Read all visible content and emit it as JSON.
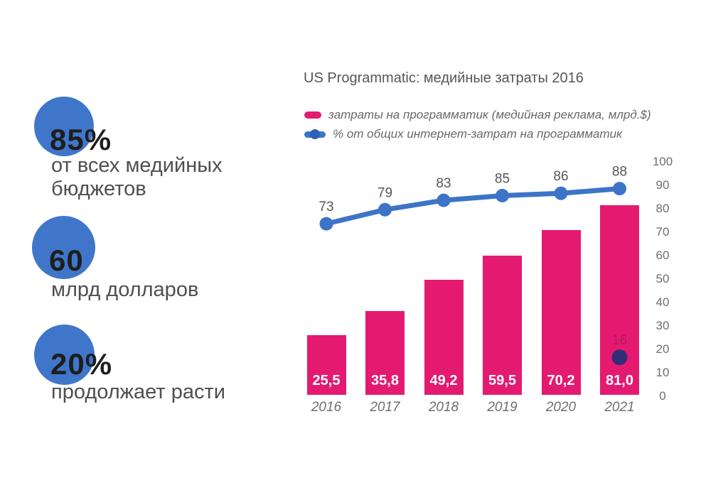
{
  "stats": [
    {
      "value": "85%",
      "label": "от всех медийных бюджетов"
    },
    {
      "value": "60",
      "label": "млрд долларов"
    },
    {
      "value": "20%",
      "label": "продолжает расти"
    }
  ],
  "chart_data": {
    "type": "bar",
    "title": "US Programmatic: медийные затраты 2016",
    "categories": [
      "2016",
      "2017",
      "2018",
      "2019",
      "2020",
      "2021"
    ],
    "series": [
      {
        "name": "затраты на программатик (медийная реклама, млрд.$)",
        "type": "bar",
        "values": [
          25.5,
          35.8,
          49.2,
          59.5,
          70.2,
          81.0
        ],
        "value_labels": [
          "25,5",
          "35,8",
          "49,2",
          "59,5",
          "70,2",
          "81,0"
        ],
        "color": "#e41a70"
      },
      {
        "name": "% от общих интернет-затрат на программатик",
        "type": "line",
        "values": [
          73,
          79,
          83,
          85,
          86,
          88
        ],
        "value_labels": [
          "73",
          "79",
          "83",
          "85",
          "86",
          "88"
        ],
        "color": "#3d74c8"
      }
    ],
    "right_axis": {
      "min": 0,
      "max": 100,
      "step": 10,
      "ticks": [
        "100",
        "90",
        "80",
        "70",
        "60",
        "50",
        "40",
        "30",
        "20",
        "10",
        "0"
      ]
    },
    "annotation_point": {
      "category": "2021",
      "value": 16,
      "label": "16",
      "color": "#322d78"
    },
    "legend_position": "top-left",
    "grid": false,
    "xlabel": "",
    "ylabel": ""
  },
  "colors": {
    "accent_blue": "#4076ca",
    "accent_pink": "#e41a70",
    "line_blue": "#3d74c8",
    "dark_text": "#1e1e1e",
    "gray_text": "#56565a",
    "annotation_dot": "#322d78",
    "background": "#ffffff"
  }
}
